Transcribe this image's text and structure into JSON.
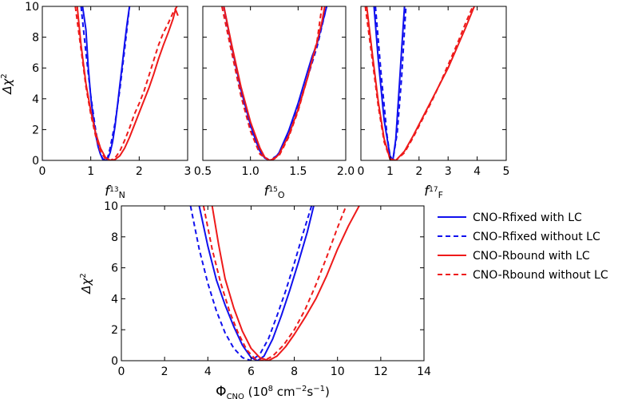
{
  "chart_data": [
    {
      "type": "line",
      "id": "f13N",
      "xlabel": "f13N",
      "xlabel_main": "f",
      "xlabel_sup": "13",
      "xlabel_sub": "N",
      "ylabel": "Δχ²",
      "xlim": [
        0,
        3
      ],
      "ylim": [
        0,
        10
      ],
      "xticks": [
        0,
        1,
        2,
        3
      ],
      "xtick_labels": [
        "0",
        "1",
        "2",
        "3"
      ],
      "yticks": [
        0,
        2,
        4,
        6,
        8,
        10
      ],
      "ytick_labels": [
        "0",
        "2",
        "4",
        "6",
        "8",
        "10"
      ],
      "series": [
        {
          "name": "CNO-Rfixed with LC",
          "x": [
            0.83,
            0.9,
            0.95,
            1.0,
            1.05,
            1.1,
            1.15,
            1.2,
            1.25,
            1.3,
            1.35,
            1.4,
            1.45,
            1.5,
            1.55,
            1.6,
            1.65,
            1.7,
            1.75,
            1.8
          ],
          "y": [
            10,
            8.5,
            6.0,
            4.1,
            2.8,
            1.7,
            0.9,
            0.4,
            0.1,
            0.0,
            0.1,
            0.5,
            1.2,
            2.2,
            3.5,
            4.9,
            6.2,
            7.6,
            8.9,
            10
          ]
        },
        {
          "name": "CNO-Rfixed without LC",
          "x": [
            0.8,
            0.9,
            1.0,
            1.1,
            1.15,
            1.2,
            1.25,
            1.3,
            1.35,
            1.4,
            1.5,
            1.6,
            1.7,
            1.8
          ],
          "y": [
            10,
            7.0,
            4.2,
            2.0,
            1.1,
            0.4,
            0.05,
            0.0,
            0.2,
            0.8,
            2.4,
            4.6,
            7.2,
            10
          ]
        },
        {
          "name": "CNO-Rbound with LC",
          "x": [
            0.72,
            0.8,
            0.9,
            1.0,
            1.1,
            1.2,
            1.3,
            1.4,
            1.5,
            1.6,
            1.7,
            1.8,
            1.9,
            2.0,
            2.1,
            2.2,
            2.3,
            2.4,
            2.5,
            2.6,
            2.7,
            2.75,
            2.8
          ],
          "y": [
            10,
            7.5,
            5.0,
            3.2,
            1.8,
            0.8,
            0.2,
            0.0,
            0.05,
            0.3,
            0.8,
            1.5,
            2.3,
            3.1,
            3.9,
            4.7,
            5.6,
            6.6,
            7.5,
            8.3,
            9.2,
            9.8,
            9.4
          ]
        },
        {
          "name": "CNO-Rbound without LC",
          "x": [
            0.68,
            0.8,
            0.9,
            1.0,
            1.1,
            1.2,
            1.3,
            1.4,
            1.5,
            1.6,
            1.7,
            1.8,
            1.9,
            2.0,
            2.1,
            2.2,
            2.3,
            2.4,
            2.5,
            2.6,
            2.7,
            2.78
          ],
          "y": [
            10,
            7.2,
            4.8,
            3.0,
            1.6,
            0.6,
            0.1,
            0.0,
            0.15,
            0.6,
            1.3,
            2.1,
            3.0,
            3.7,
            4.5,
            5.5,
            6.5,
            7.5,
            8.3,
            8.9,
            9.6,
            10
          ]
        }
      ]
    },
    {
      "type": "line",
      "id": "f15O",
      "xlabel": "f15O",
      "xlabel_main": "f",
      "xlabel_sup": "15",
      "xlabel_sub": "O",
      "ylabel": "",
      "xlim": [
        0.5,
        2.0
      ],
      "ylim": [
        0,
        10
      ],
      "xticks": [
        0.5,
        1.0,
        1.5,
        2.0
      ],
      "xtick_labels": [
        "0.5",
        "1.0",
        "1.5",
        "2.0"
      ],
      "yticks": [],
      "ytick_labels": [],
      "series": [
        {
          "name": "CNO-Rfixed with LC",
          "x": [
            0.72,
            0.8,
            0.9,
            1.0,
            1.05,
            1.1,
            1.15,
            1.2,
            1.25,
            1.3,
            1.4,
            1.5,
            1.6,
            1.65,
            1.7,
            1.75,
            1.8
          ],
          "y": [
            10,
            7.5,
            4.6,
            2.3,
            1.4,
            0.6,
            0.15,
            0.0,
            0.1,
            0.5,
            1.9,
            3.7,
            5.8,
            6.8,
            7.6,
            8.8,
            10
          ]
        },
        {
          "name": "CNO-Rfixed without LC",
          "x": [
            0.72,
            0.8,
            0.9,
            1.0,
            1.1,
            1.2,
            1.3,
            1.4,
            1.5,
            1.6,
            1.7,
            1.8
          ],
          "y": [
            10,
            7.3,
            4.4,
            2.1,
            0.5,
            0.0,
            0.4,
            1.7,
            3.4,
            5.4,
            7.4,
            10
          ]
        },
        {
          "name": "CNO-Rbound with LC",
          "x": [
            0.72,
            0.8,
            0.9,
            1.0,
            1.1,
            1.15,
            1.2,
            1.25,
            1.3,
            1.4,
            1.5,
            1.6,
            1.7,
            1.75,
            1.78
          ],
          "y": [
            10,
            7.6,
            4.8,
            2.5,
            0.8,
            0.2,
            0.0,
            0.1,
            0.4,
            1.6,
            3.3,
            5.4,
            7.7,
            9.0,
            10
          ]
        },
        {
          "name": "CNO-Rbound without LC",
          "x": [
            0.7,
            0.8,
            0.9,
            1.0,
            1.1,
            1.2,
            1.3,
            1.4,
            1.5,
            1.6,
            1.7,
            1.75
          ],
          "y": [
            10,
            7.1,
            4.2,
            1.9,
            0.4,
            0.0,
            0.3,
            1.5,
            3.2,
            5.4,
            7.8,
            10
          ]
        }
      ]
    },
    {
      "type": "line",
      "id": "f17F",
      "xlabel": "f17F",
      "xlabel_main": "f",
      "xlabel_sup": "17",
      "xlabel_sub": "F",
      "ylabel": "",
      "xlim": [
        0,
        5
      ],
      "ylim": [
        0,
        10
      ],
      "xticks": [
        0,
        1,
        2,
        3,
        4,
        5
      ],
      "xtick_labels": [
        "0",
        "1",
        "2",
        "3",
        "4",
        "5"
      ],
      "yticks": [],
      "ytick_labels": [],
      "series": [
        {
          "name": "CNO-Rfixed with LC",
          "x": [
            0.45,
            0.6,
            0.8,
            1.0,
            1.1,
            1.2,
            1.3,
            1.4,
            1.5
          ],
          "y": [
            10,
            6.5,
            2.6,
            0.3,
            0.0,
            1.4,
            4.2,
            7.2,
            10
          ]
        },
        {
          "name": "CNO-Rfixed without LC",
          "x": [
            0.5,
            0.7,
            0.9,
            1.0,
            1.1,
            1.25,
            1.4,
            1.55
          ],
          "y": [
            10,
            5.5,
            1.6,
            0.3,
            0.0,
            1.8,
            5.4,
            10
          ]
        },
        {
          "name": "CNO-Rbound with LC",
          "x": [
            0.2,
            0.4,
            0.6,
            0.8,
            1.0,
            1.2,
            1.5,
            1.8,
            2.1,
            2.4,
            2.7,
            3.0,
            3.3,
            3.6,
            3.9
          ],
          "y": [
            10,
            6.8,
            3.8,
            1.4,
            0.1,
            0.0,
            0.6,
            1.6,
            2.7,
            3.8,
            4.9,
            6.0,
            7.3,
            8.6,
            10
          ]
        },
        {
          "name": "CNO-Rbound without LC",
          "x": [
            0.15,
            0.4,
            0.6,
            0.8,
            1.0,
            1.2,
            1.5,
            1.8,
            2.1,
            2.4,
            2.7,
            3.0,
            3.3,
            3.6,
            3.85
          ],
          "y": [
            10,
            6.4,
            3.5,
            1.2,
            0.1,
            0.0,
            0.5,
            1.5,
            2.6,
            3.7,
            4.9,
            6.2,
            7.5,
            8.9,
            10
          ]
        }
      ]
    },
    {
      "type": "line",
      "id": "phi_cno",
      "xlabel": "ΦCNO (10⁸ cm⁻²s⁻¹)",
      "xlabel_main": "Φ",
      "xlabel_sub": "CNO",
      "xlabel_units": "(10",
      "xlabel_units_exp": "8",
      "xlabel_units_mid": " cm",
      "xlabel_units_exp2": "−2",
      "xlabel_units_end": "s",
      "xlabel_units_exp3": "−1",
      "xlabel_units_close": ")",
      "ylabel": "Δχ²",
      "xlim": [
        0,
        14
      ],
      "ylim": [
        0,
        10
      ],
      "xticks": [
        0,
        2,
        4,
        6,
        8,
        10,
        12,
        14
      ],
      "xtick_labels": [
        "0",
        "2",
        "4",
        "6",
        "8",
        "10",
        "12",
        "14"
      ],
      "yticks": [
        0,
        2,
        4,
        6,
        8,
        10
      ],
      "ytick_labels": [
        "0",
        "2",
        "4",
        "6",
        "8",
        "10"
      ],
      "series": [
        {
          "name": "CNO-Rfixed with LC",
          "x": [
            3.6,
            4.0,
            4.4,
            4.8,
            5.2,
            5.6,
            6.0,
            6.3,
            6.6,
            7.0,
            7.4,
            7.8,
            8.2,
            8.6,
            8.9
          ],
          "y": [
            10,
            7.4,
            5.2,
            3.6,
            2.2,
            1.0,
            0.2,
            0.0,
            0.3,
            1.4,
            2.9,
            4.6,
            6.4,
            8.3,
            10
          ]
        },
        {
          "name": "CNO-Rfixed without LC",
          "x": [
            3.2,
            3.6,
            4.0,
            4.4,
            4.8,
            5.2,
            5.6,
            6.0,
            6.4,
            6.8,
            7.2,
            7.6,
            8.0,
            8.4,
            8.8
          ],
          "y": [
            10,
            7.2,
            5.0,
            3.2,
            1.8,
            0.8,
            0.2,
            0.0,
            0.4,
            1.4,
            2.9,
            4.5,
            6.3,
            8.2,
            10
          ]
        },
        {
          "name": "CNO-Rbound with LC",
          "x": [
            4.2,
            4.5,
            4.8,
            5.2,
            5.6,
            6.0,
            6.4,
            6.8,
            7.2,
            7.6,
            8.0,
            8.5,
            9.0,
            9.5,
            10.0,
            10.5,
            11.0
          ],
          "y": [
            10,
            7.5,
            5.3,
            3.4,
            1.9,
            0.8,
            0.2,
            0.0,
            0.3,
            0.9,
            1.7,
            2.8,
            4.0,
            5.5,
            7.2,
            8.7,
            10
          ]
        },
        {
          "name": "CNO-Rbound without LC",
          "x": [
            3.8,
            4.2,
            4.6,
            5.0,
            5.4,
            5.8,
            6.2,
            6.6,
            7.0,
            7.5,
            8.0,
            8.5,
            9.0,
            9.5,
            10.0,
            10.4
          ],
          "y": [
            10,
            7.2,
            5.0,
            3.2,
            1.8,
            0.7,
            0.1,
            0.0,
            0.3,
            1.0,
            2.0,
            3.3,
            4.9,
            6.7,
            8.6,
            10
          ]
        }
      ]
    }
  ],
  "legend": {
    "placement": "right of bottom panel",
    "items": [
      {
        "label": "CNO-Rfixed with LC",
        "color": "#1010ee",
        "style": "solid"
      },
      {
        "label": "CNO-Rfixed without LC",
        "color": "#1010ee",
        "style": "dashed"
      },
      {
        "label": "CNO-Rbound with LC",
        "color": "#ee1a1a",
        "style": "solid"
      },
      {
        "label": "CNO-Rbound without LC",
        "color": "#ee1a1a",
        "style": "dashed"
      }
    ]
  },
  "colors": {
    "blue": "#1010ee",
    "red": "#ee1a1a"
  }
}
